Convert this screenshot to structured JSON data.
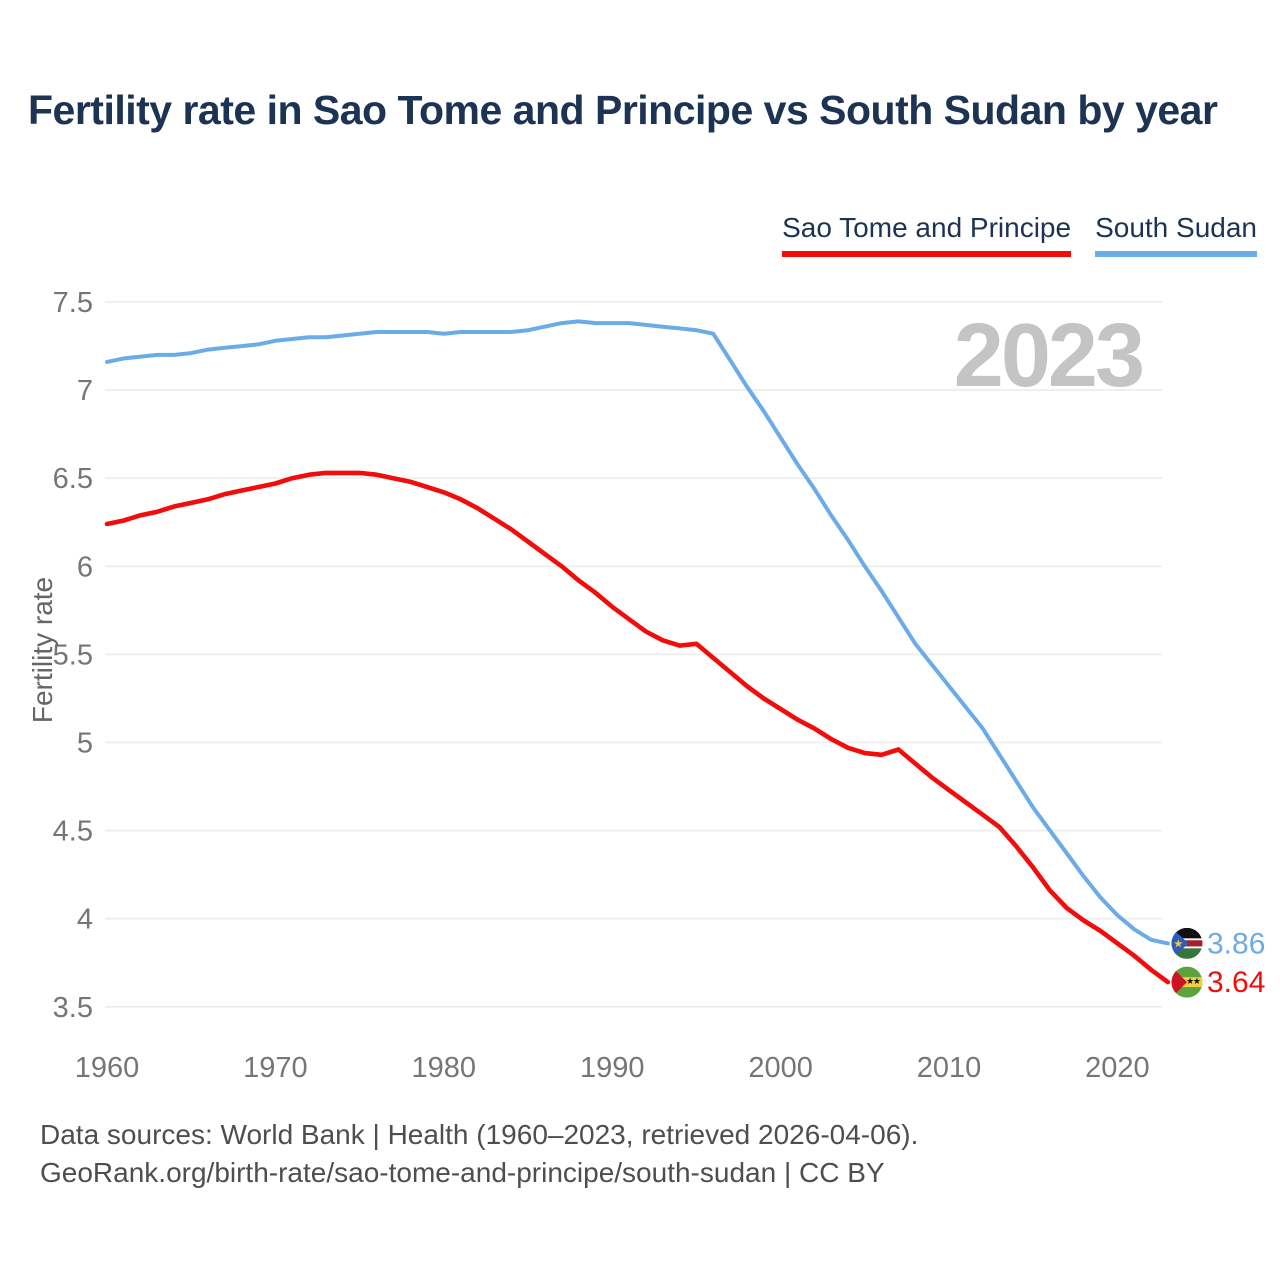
{
  "page": {
    "title": "Fertility rate in Sao Tome and Principe vs South Sudan by year",
    "footer": {
      "line1": "Data sources: World Bank | Health (1960–2023, retrieved 2026-04-06).",
      "line2": "GeoRank.org/birth-rate/sao-tome-and-principe/south-sudan | CC BY"
    }
  },
  "legend": [
    {
      "label": "Sao Tome and Principe",
      "color": "#f20d0d"
    },
    {
      "label": "South Sudan",
      "color": "#6babe8"
    }
  ],
  "colors": {
    "title_navy": "#1c3354",
    "axis_gray": "#767676",
    "grid_gray": "#ececec",
    "watermark_gray": "#c4c4c4",
    "footer_gray": "#4e4e4e"
  },
  "chart_data": {
    "type": "line",
    "title": "Fertility rate in Sao Tome and Principe vs South Sudan by year",
    "xlabel": "",
    "ylabel": "Fertility rate",
    "watermark": "2023",
    "grid": "horizontal",
    "legend_position": "top-right",
    "x_ticks": [
      1960,
      1970,
      1980,
      1990,
      2000,
      2010,
      2020
    ],
    "y_ticks": [
      7.5,
      7.0,
      6.5,
      6.0,
      5.5,
      5.0,
      4.5,
      4.0,
      3.5
    ],
    "ylim": [
      3.5,
      7.5
    ],
    "xlim": [
      1960,
      2023
    ],
    "years": [
      1960,
      1961,
      1962,
      1963,
      1964,
      1965,
      1966,
      1967,
      1968,
      1969,
      1970,
      1971,
      1972,
      1973,
      1974,
      1975,
      1976,
      1977,
      1978,
      1979,
      1980,
      1981,
      1982,
      1983,
      1984,
      1985,
      1986,
      1987,
      1988,
      1989,
      1990,
      1991,
      1992,
      1993,
      1994,
      1995,
      1996,
      1997,
      1998,
      1999,
      2000,
      2001,
      2002,
      2003,
      2004,
      2005,
      2006,
      2007,
      2008,
      2009,
      2010,
      2011,
      2012,
      2013,
      2014,
      2015,
      2016,
      2017,
      2018,
      2019,
      2020,
      2021,
      2022,
      2023
    ],
    "series": [
      {
        "name": "South Sudan",
        "color": "#6babe8",
        "stroke_width": 4,
        "end_label": "3.86",
        "flag_icon": "south-sudan-flag-icon",
        "values": [
          7.16,
          7.18,
          7.19,
          7.2,
          7.2,
          7.21,
          7.23,
          7.24,
          7.25,
          7.26,
          7.28,
          7.29,
          7.3,
          7.3,
          7.31,
          7.32,
          7.33,
          7.33,
          7.33,
          7.33,
          7.32,
          7.33,
          7.33,
          7.33,
          7.33,
          7.34,
          7.36,
          7.38,
          7.39,
          7.38,
          7.38,
          7.38,
          7.37,
          7.36,
          7.35,
          7.34,
          7.32,
          7.17,
          7.02,
          6.88,
          6.73,
          6.58,
          6.44,
          6.29,
          6.15,
          6.0,
          5.86,
          5.71,
          5.56,
          5.44,
          5.32,
          5.2,
          5.08,
          4.93,
          4.78,
          4.63,
          4.5,
          4.37,
          4.24,
          4.12,
          4.02,
          3.94,
          3.88,
          3.86
        ]
      },
      {
        "name": "Sao Tome and Principe",
        "color": "#f20d0d",
        "stroke_width": 4.6,
        "end_label": "3.64",
        "flag_icon": "sao-tome-and-principe-flag-icon",
        "values": [
          6.24,
          6.26,
          6.29,
          6.31,
          6.34,
          6.36,
          6.38,
          6.41,
          6.43,
          6.45,
          6.47,
          6.5,
          6.52,
          6.53,
          6.53,
          6.53,
          6.52,
          6.5,
          6.48,
          6.45,
          6.42,
          6.38,
          6.33,
          6.27,
          6.21,
          6.14,
          6.07,
          6.0,
          5.92,
          5.85,
          5.77,
          5.7,
          5.63,
          5.58,
          5.55,
          5.56,
          5.48,
          5.4,
          5.32,
          5.25,
          5.19,
          5.13,
          5.08,
          5.02,
          4.97,
          4.94,
          4.93,
          4.96,
          4.88,
          4.8,
          4.73,
          4.66,
          4.59,
          4.52,
          4.41,
          4.29,
          4.16,
          4.06,
          3.99,
          3.93,
          3.86,
          3.79,
          3.71,
          3.64
        ]
      }
    ]
  }
}
